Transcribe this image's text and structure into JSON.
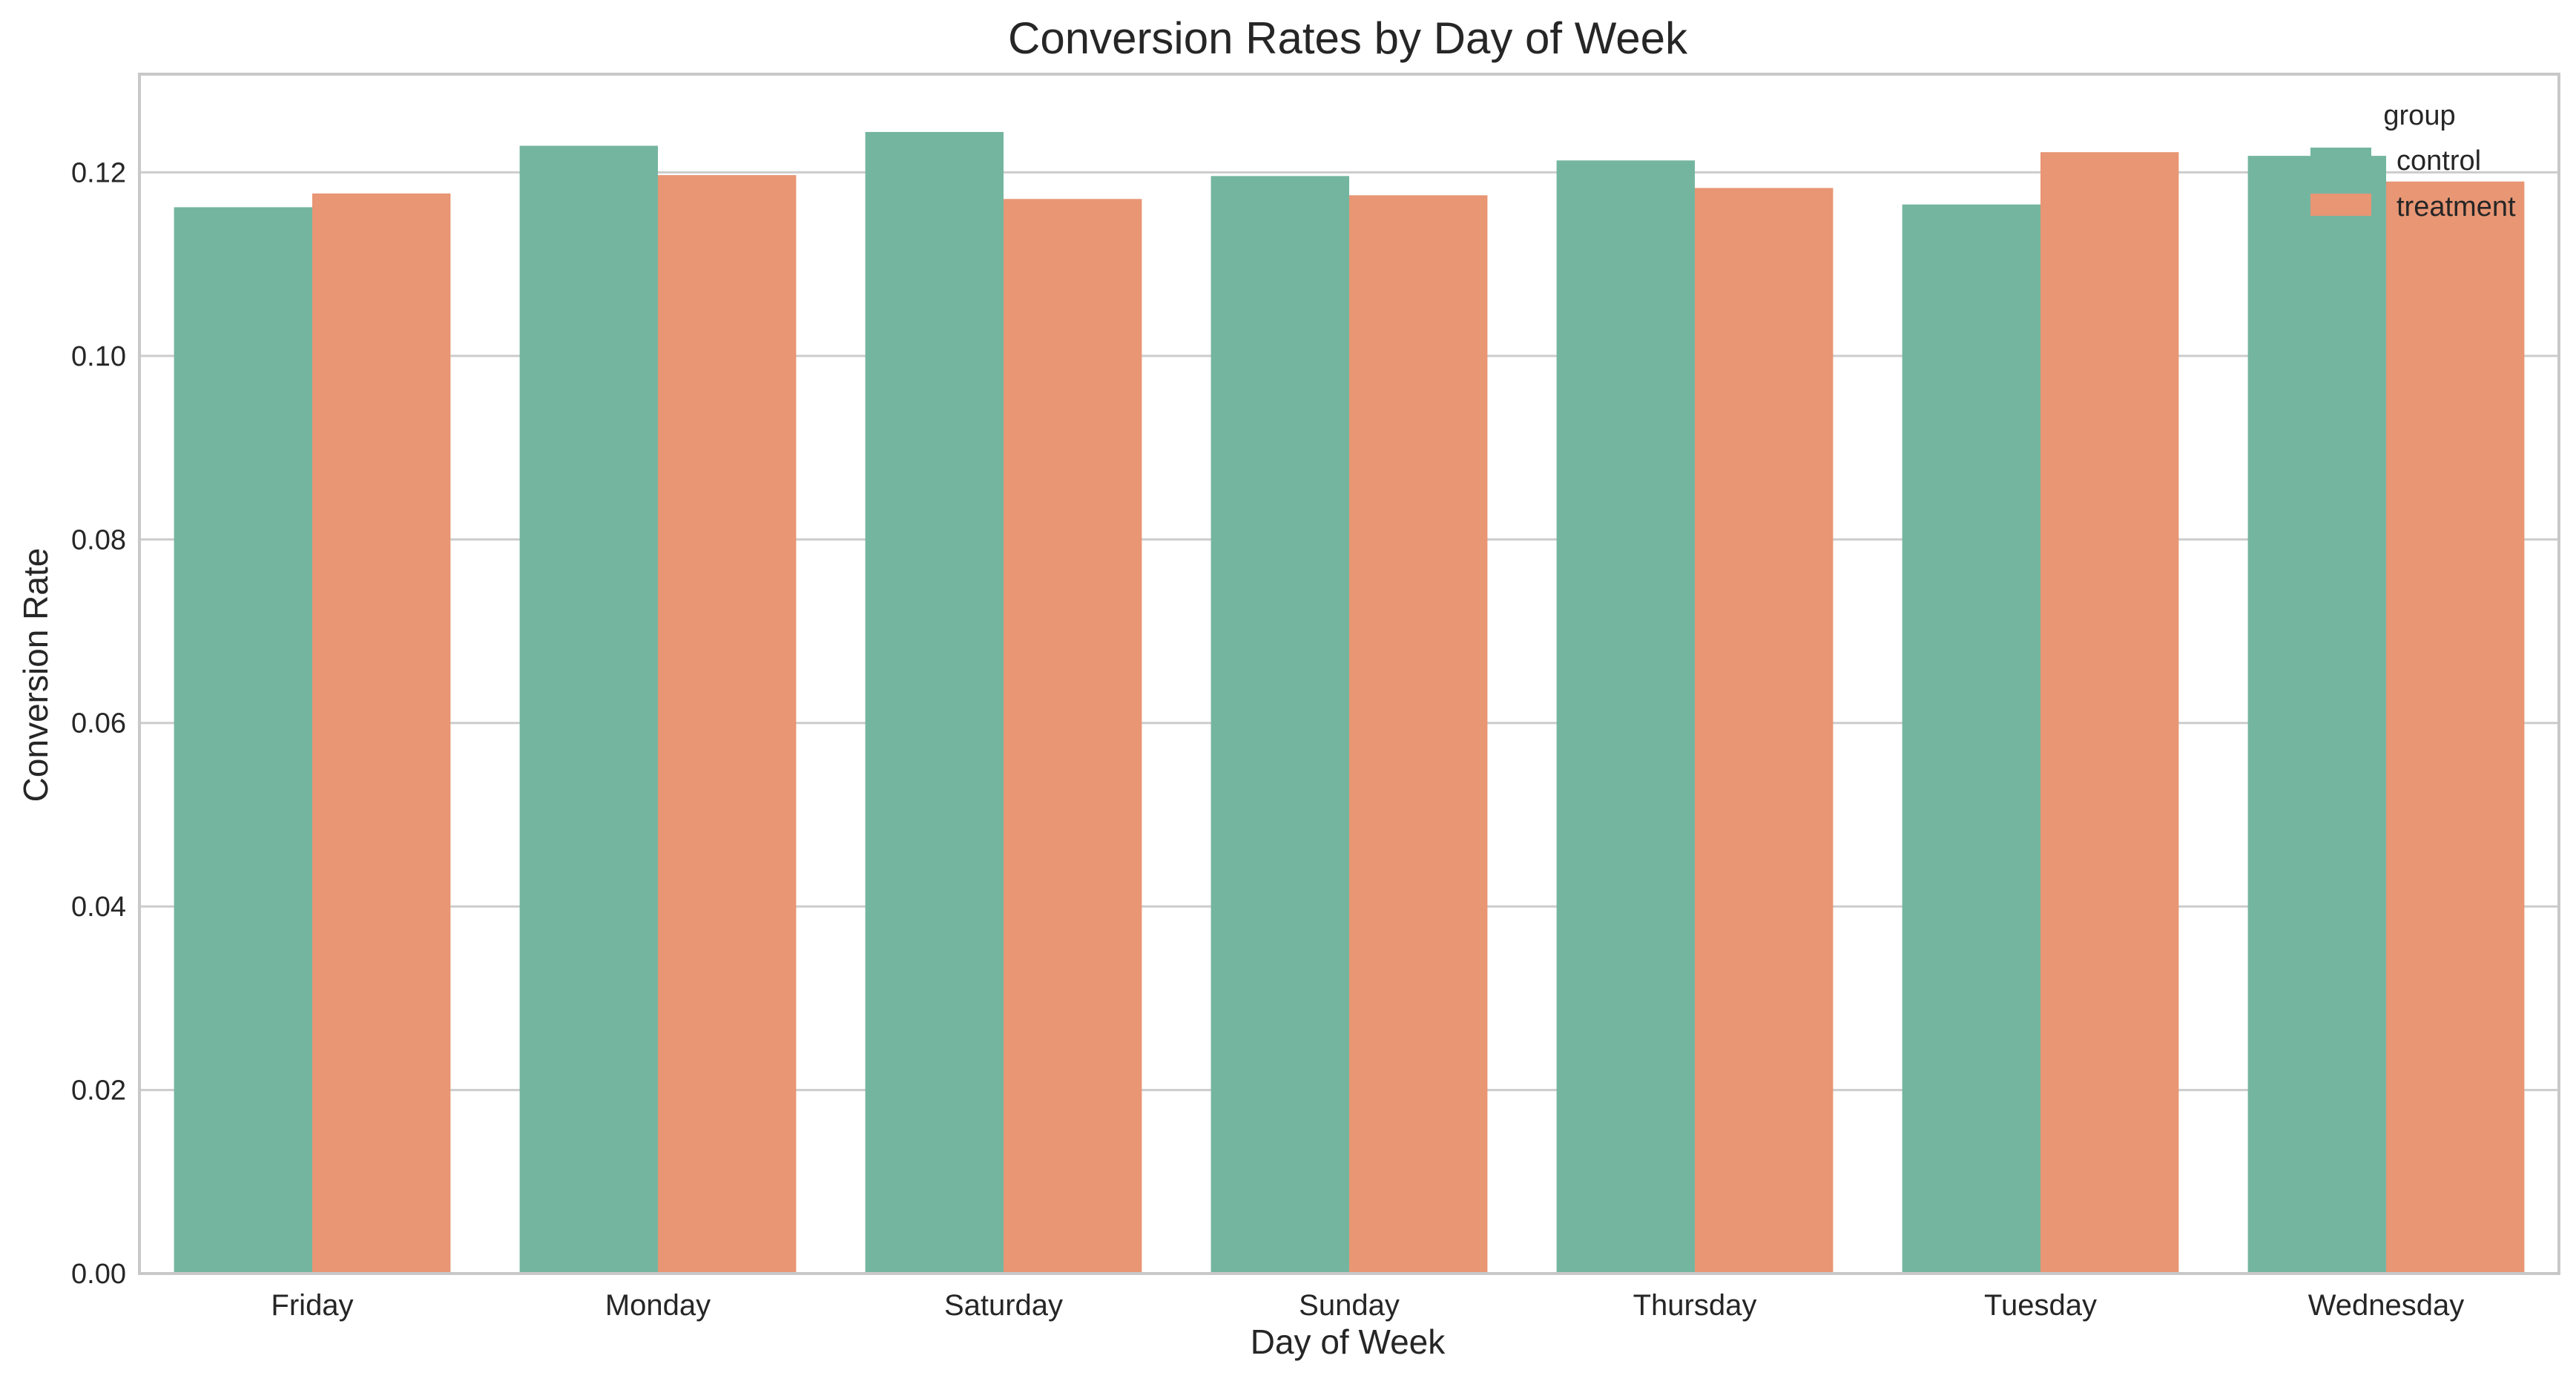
{
  "chart_data": {
    "type": "bar",
    "title": "Conversion Rates by Day of Week",
    "xlabel": "Day of Week",
    "ylabel": "Conversion Rate",
    "categories": [
      "Friday",
      "Monday",
      "Saturday",
      "Sunday",
      "Thursday",
      "Tuesday",
      "Wednesday"
    ],
    "series": [
      {
        "name": "control",
        "color": "#74b5a0",
        "values": [
          0.1162,
          0.1229,
          0.1244,
          0.1196,
          0.1213,
          0.1165,
          0.1218
        ]
      },
      {
        "name": "treatment",
        "color": "#e89674",
        "values": [
          0.1177,
          0.1197,
          0.1171,
          0.1175,
          0.1183,
          0.1222,
          0.119
        ]
      }
    ],
    "ylim": [
      0,
      0.1307
    ],
    "yticks": [
      "0.00",
      "0.02",
      "0.04",
      "0.06",
      "0.08",
      "0.10",
      "0.12"
    ],
    "legend": {
      "title": "group",
      "placement": "top-right"
    },
    "grid": "horizontal"
  }
}
